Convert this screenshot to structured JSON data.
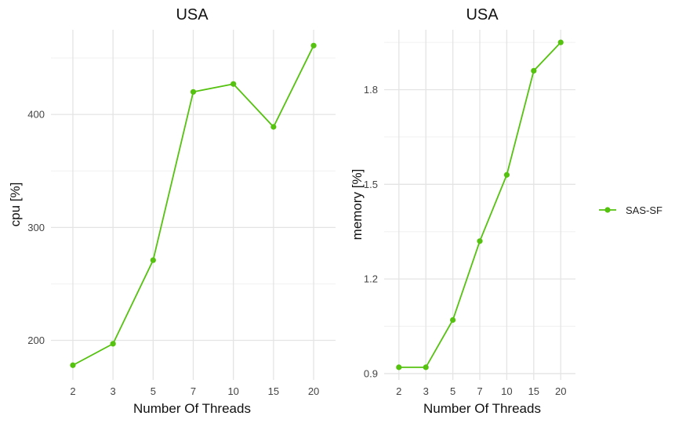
{
  "chart_data": [
    {
      "type": "line",
      "title": "USA",
      "xlabel": "Number Of Threads",
      "ylabel": "cpu [%]",
      "categories": [
        "2",
        "3",
        "5",
        "7",
        "10",
        "15",
        "20"
      ],
      "series": [
        {
          "name": "SAS-SF",
          "color": "#55c20f",
          "values": [
            178,
            197,
            271,
            420,
            427,
            389,
            461
          ]
        }
      ],
      "yticks": [
        200,
        300,
        400
      ],
      "ylim": [
        165,
        475
      ],
      "grid": true
    },
    {
      "type": "line",
      "title": "USA",
      "xlabel": "Number Of Threads",
      "ylabel": "memory [%]",
      "categories": [
        "2",
        "3",
        "5",
        "7",
        "10",
        "15",
        "20"
      ],
      "series": [
        {
          "name": "SAS-SF",
          "color": "#55c20f",
          "values": [
            0.92,
            0.92,
            1.07,
            1.32,
            1.53,
            1.86,
            1.95
          ]
        }
      ],
      "yticks": [
        0.9,
        1.2,
        1.5,
        1.8
      ],
      "ytick_labels": [
        "0.9",
        "1.2",
        "1.5",
        "1.8"
      ],
      "ylim": [
        0.88,
        1.99
      ],
      "grid": true
    }
  ],
  "legend": {
    "placement": "right",
    "entries": [
      {
        "label": "SAS-SF",
        "color": "#55c20f"
      }
    ]
  }
}
